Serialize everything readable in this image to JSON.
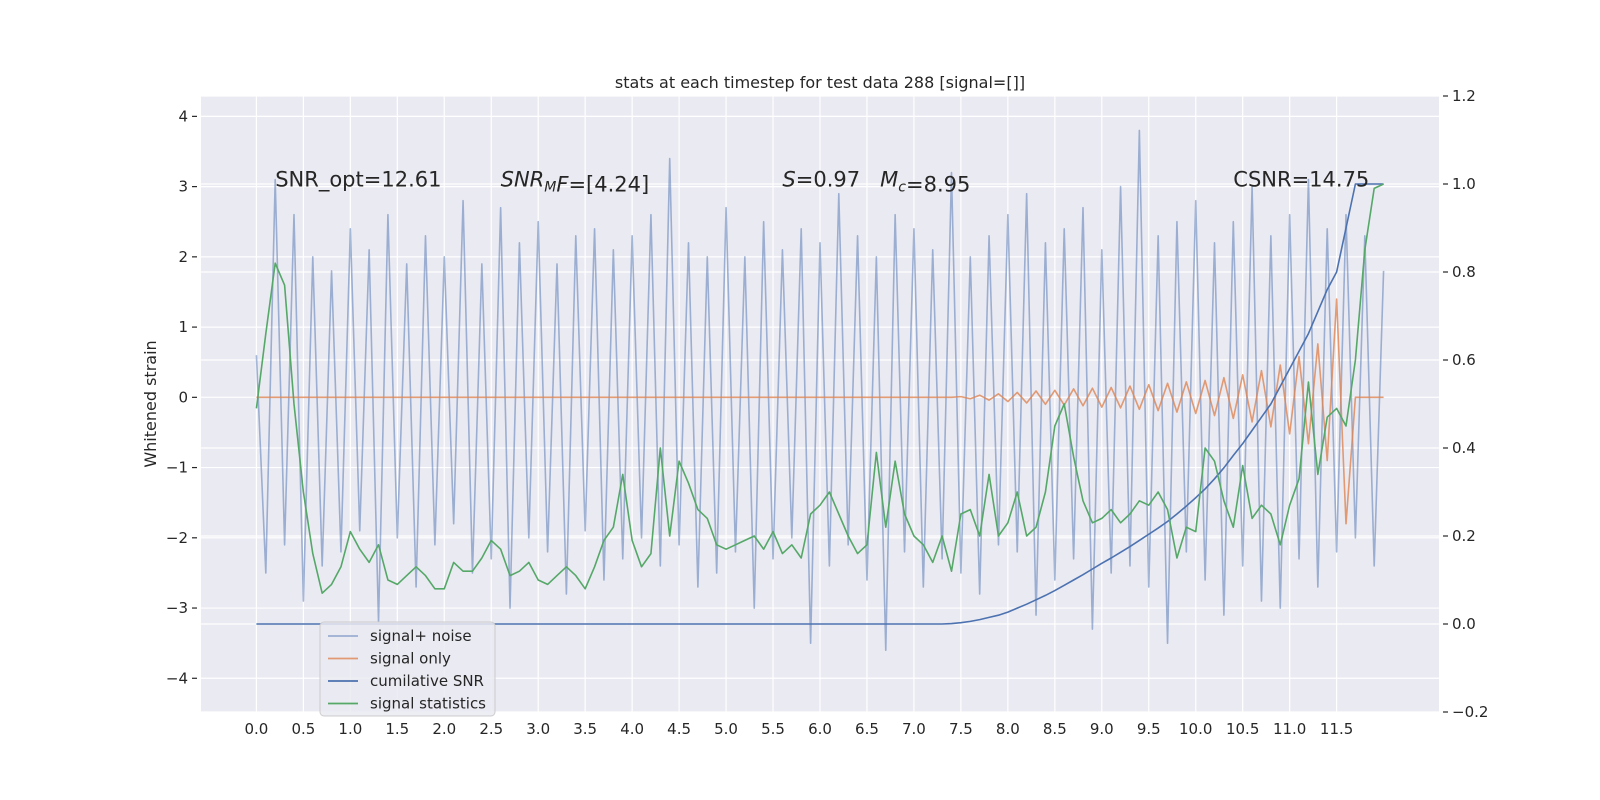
{
  "chart_data": {
    "type": "line",
    "title": "stats at each timestep for test data 288 [signal=[]]",
    "ylabel": "Whitened strain",
    "grid": true,
    "legend": "lower left",
    "background": "#eaeaf2",
    "xlim": [
      -0.59,
      12.59
    ],
    "ylim": [
      -4.48,
      4.29
    ],
    "y2lim": [
      -0.2,
      1.2
    ],
    "xticks": [
      {
        "value": 0,
        "label": "0.0"
      },
      0.5,
      {
        "value": 1,
        "label": "1.0"
      },
      1.5,
      {
        "value": 2,
        "label": "2.0"
      },
      2.5,
      {
        "value": 3,
        "label": "3.0"
      },
      3.5,
      {
        "value": 4,
        "label": "4.0"
      },
      4.5,
      {
        "value": 5,
        "label": "5.0"
      },
      5.5,
      {
        "value": 6,
        "label": "6.0"
      },
      6.5,
      {
        "value": 7,
        "label": "7.0"
      },
      7.5,
      {
        "value": 8,
        "label": "8.0"
      },
      8.5,
      {
        "value": 9,
        "label": "9.0"
      },
      9.5,
      {
        "value": 10,
        "label": "10.0"
      },
      10.5,
      {
        "value": 11,
        "label": "11.0"
      },
      11.5
    ],
    "yticks": [
      {
        "value": -4,
        "label": "−4"
      },
      {
        "value": -3,
        "label": "−3"
      },
      {
        "value": -2,
        "label": "−2"
      },
      {
        "value": -1,
        "label": "−1"
      },
      0,
      1,
      2,
      3,
      4
    ],
    "y2ticks": [
      {
        "value": -0.2,
        "label": "−0.2"
      },
      {
        "value": 0,
        "label": "0.0"
      },
      0.2,
      0.4,
      0.6,
      0.8,
      {
        "value": 1,
        "label": "1.0"
      },
      1.2
    ],
    "x": [
      0,
      0.1,
      0.2,
      0.3,
      0.4,
      0.5,
      0.6,
      0.7,
      0.8,
      0.9,
      1,
      1.1,
      1.2,
      1.3,
      1.4,
      1.5,
      1.6,
      1.7,
      1.8,
      1.9,
      2,
      2.1,
      2.2,
      2.3,
      2.4,
      2.5,
      2.6,
      2.7,
      2.8,
      2.9,
      3,
      3.1,
      3.2,
      3.3,
      3.4,
      3.5,
      3.6,
      3.7,
      3.8,
      3.9,
      4,
      4.1,
      4.2,
      4.3,
      4.4,
      4.5,
      4.6,
      4.7,
      4.8,
      4.9,
      5,
      5.1,
      5.2,
      5.3,
      5.4,
      5.5,
      5.6,
      5.7,
      5.8,
      5.9,
      6,
      6.1,
      6.2,
      6.3,
      6.4,
      6.5,
      6.6,
      6.7,
      6.8,
      6.9,
      7,
      7.1,
      7.2,
      7.3,
      7.4,
      7.5,
      7.6,
      7.7,
      7.8,
      7.9,
      8,
      8.1,
      8.2,
      8.3,
      8.4,
      8.5,
      8.6,
      8.7,
      8.8,
      8.9,
      9,
      9.1,
      9.2,
      9.3,
      9.4,
      9.5,
      9.6,
      9.7,
      9.8,
      9.9,
      10,
      10.1,
      10.2,
      10.3,
      10.4,
      10.5,
      10.6,
      10.7,
      10.8,
      10.9,
      11,
      11.1,
      11.2,
      11.3,
      11.4,
      11.5,
      11.6,
      11.7,
      11.8,
      11.9,
      12
    ],
    "series": [
      {
        "name": "signal+ noise",
        "color": "#4c72b0",
        "alpha": 0.5,
        "axis": "y",
        "values": [
          0.6,
          -2.5,
          3.1,
          -2.1,
          2.6,
          -2.9,
          2.0,
          -2.4,
          1.8,
          -2.2,
          2.4,
          -1.9,
          2.1,
          -3.2,
          2.6,
          -2.0,
          1.9,
          -2.7,
          2.3,
          -2.1,
          2.0,
          -1.8,
          2.8,
          -2.5,
          1.9,
          -2.3,
          2.7,
          -3.0,
          2.2,
          -2.0,
          2.5,
          -2.2,
          1.9,
          -2.8,
          2.3,
          -1.9,
          2.4,
          -2.6,
          2.1,
          -2.3,
          2.3,
          -2.0,
          2.6,
          -2.4,
          3.4,
          -2.1,
          2.2,
          -2.7,
          2.0,
          -2.5,
          2.7,
          -2.2,
          2.0,
          -3.0,
          2.5,
          -2.3,
          2.1,
          -2.0,
          2.4,
          -3.5,
          2.2,
          -2.4,
          2.9,
          -2.1,
          2.3,
          -2.6,
          2.0,
          -3.6,
          2.6,
          -2.2,
          2.4,
          -2.7,
          2.1,
          -2.3,
          3.2,
          -2.5,
          2.0,
          -2.8,
          2.3,
          -2.1,
          2.6,
          -2.2,
          2.9,
          -3.1,
          2.2,
          -2.6,
          2.4,
          -2.3,
          2.7,
          -3.3,
          2.1,
          -2.5,
          3.0,
          -2.4,
          3.8,
          -2.7,
          2.3,
          -3.5,
          2.5,
          -2.2,
          2.8,
          -2.6,
          2.2,
          -3.1,
          2.5,
          -2.4,
          3.0,
          -2.9,
          2.3,
          -3.0,
          2.6,
          -2.3,
          3.1,
          -2.7,
          2.4,
          -2.2,
          2.6,
          -2.0,
          2.3,
          -2.4,
          1.8
        ]
      },
      {
        "name": "signal only",
        "color": "#dd8452",
        "alpha": 0.8,
        "axis": "y",
        "values": [
          0,
          0,
          0,
          0,
          0,
          0,
          0,
          0,
          0,
          0,
          0,
          0,
          0,
          0,
          0,
          0,
          0,
          0,
          0,
          0,
          0,
          0,
          0,
          0,
          0,
          0,
          0,
          0,
          0,
          0,
          0,
          0,
          0,
          0,
          0,
          0,
          0,
          0,
          0,
          0,
          0,
          0,
          0,
          0,
          0,
          0,
          0,
          0,
          0,
          0,
          0,
          0,
          0,
          0,
          0,
          0,
          0,
          0,
          0,
          0,
          0,
          0,
          0,
          0,
          0,
          0,
          0,
          0,
          0,
          0,
          0,
          0,
          0,
          0,
          0,
          0.01,
          -0.02,
          0.03,
          -0.04,
          0.05,
          -0.06,
          0.07,
          -0.08,
          0.09,
          -0.1,
          0.1,
          -0.11,
          0.12,
          -0.12,
          0.13,
          -0.14,
          0.14,
          -0.15,
          0.16,
          -0.17,
          0.18,
          -0.19,
          0.2,
          -0.21,
          0.22,
          -0.23,
          0.24,
          -0.26,
          0.28,
          -0.3,
          0.32,
          -0.35,
          0.38,
          -0.42,
          0.46,
          -0.52,
          0.58,
          -0.66,
          0.76,
          -0.9,
          1.4,
          -1.8,
          0,
          0,
          0,
          0
        ]
      },
      {
        "name": "cumilative SNR",
        "color": "#4c72b0",
        "alpha": 1,
        "axis": "y2",
        "values": [
          0,
          0,
          0,
          0,
          0,
          0,
          0,
          0,
          0,
          0,
          0,
          0,
          0,
          0,
          0,
          0,
          0,
          0,
          0,
          0,
          0,
          0,
          0,
          0,
          0,
          0,
          0,
          0,
          0,
          0,
          0,
          0,
          0,
          0,
          0,
          0,
          0,
          0,
          0,
          0,
          0,
          0,
          0,
          0,
          0,
          0,
          0,
          0,
          0,
          0,
          0,
          0,
          0,
          0,
          0,
          0,
          0,
          0,
          0,
          0,
          0,
          0,
          0,
          0,
          0,
          0,
          0,
          0,
          0,
          0,
          0,
          0,
          0,
          0,
          0.001,
          0.003,
          0.006,
          0.01,
          0.015,
          0.02,
          0.027,
          0.036,
          0.045,
          0.055,
          0.065,
          0.076,
          0.088,
          0.1,
          0.112,
          0.125,
          0.138,
          0.15,
          0.163,
          0.176,
          0.19,
          0.204,
          0.218,
          0.233,
          0.25,
          0.268,
          0.287,
          0.307,
          0.33,
          0.355,
          0.383,
          0.41,
          0.44,
          0.47,
          0.5,
          0.54,
          0.58,
          0.62,
          0.66,
          0.71,
          0.76,
          0.8,
          0.9,
          1.0,
          1.0,
          1.0,
          1.0
        ]
      },
      {
        "name": "signal statistics",
        "color": "#55a868",
        "alpha": 1,
        "axis": "y2",
        "values": [
          0.49,
          0.66,
          0.82,
          0.77,
          0.5,
          0.3,
          0.16,
          0.07,
          0.09,
          0.13,
          0.21,
          0.17,
          0.14,
          0.18,
          0.1,
          0.09,
          0.11,
          0.13,
          0.11,
          0.08,
          0.08,
          0.14,
          0.12,
          0.12,
          0.15,
          0.19,
          0.17,
          0.11,
          0.12,
          0.14,
          0.1,
          0.09,
          0.11,
          0.13,
          0.11,
          0.08,
          0.13,
          0.19,
          0.22,
          0.34,
          0.19,
          0.13,
          0.16,
          0.4,
          0.2,
          0.37,
          0.32,
          0.26,
          0.24,
          0.18,
          0.17,
          0.18,
          0.19,
          0.2,
          0.17,
          0.21,
          0.16,
          0.18,
          0.15,
          0.25,
          0.27,
          0.3,
          0.25,
          0.2,
          0.16,
          0.18,
          0.39,
          0.22,
          0.37,
          0.25,
          0.2,
          0.18,
          0.14,
          0.2,
          0.12,
          0.25,
          0.26,
          0.2,
          0.34,
          0.2,
          0.23,
          0.3,
          0.2,
          0.22,
          0.3,
          0.45,
          0.5,
          0.38,
          0.28,
          0.23,
          0.24,
          0.26,
          0.23,
          0.25,
          0.28,
          0.27,
          0.3,
          0.26,
          0.15,
          0.22,
          0.21,
          0.4,
          0.37,
          0.28,
          0.22,
          0.36,
          0.24,
          0.27,
          0.25,
          0.18,
          0.27,
          0.33,
          0.55,
          0.34,
          0.47,
          0.49,
          0.45,
          0.6,
          0.85,
          0.99,
          1.0
        ]
      }
    ],
    "annotations": [
      {
        "x": 0.2,
        "y": 3.0,
        "parts": [
          {
            "text": "SNR_opt=12.61"
          }
        ]
      },
      {
        "x": 2.6,
        "y": 3.0,
        "parts": [
          {
            "text": "SNR",
            "italic": true
          },
          {
            "text": "M",
            "italic": true,
            "sub": true
          },
          {
            "text": "F",
            "italic": true
          },
          {
            "text": "=[4.24]"
          }
        ]
      },
      {
        "x": 5.6,
        "y": 3.0,
        "parts": [
          {
            "text": "S",
            "italic": true
          },
          {
            "text": "=0.97   "
          },
          {
            "text": "M",
            "italic": true
          },
          {
            "text": "c",
            "italic": true,
            "sub": true
          },
          {
            "text": "=8.95"
          }
        ]
      },
      {
        "x": 10.4,
        "y": 3.0,
        "parts": [
          {
            "text": "CSNR=14.75"
          }
        ]
      }
    ]
  }
}
